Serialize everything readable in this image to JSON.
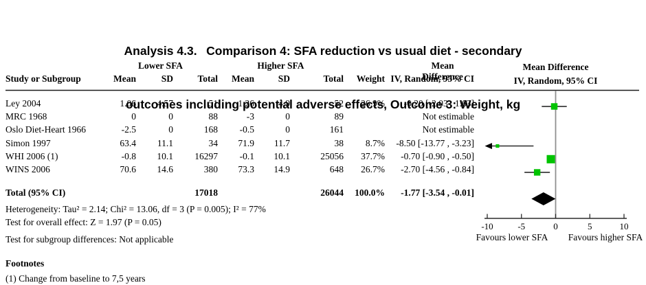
{
  "title": {
    "line1": "Analysis 4.3.  Comparison 4: SFA reduction vs usual diet - secondary",
    "line2": "outcomes including potential adverse effects, Outcome 3: Weight, kg"
  },
  "table": {
    "group_headers": {
      "lower": "Lower SFA",
      "higher": "Higher SFA",
      "mean_diff": "Mean Difference"
    },
    "col_headers": {
      "study": "Study or Subgroup",
      "mean1": "Mean",
      "sd1": "SD",
      "total1": "Total",
      "mean2": "Mean",
      "sd2": "SD",
      "total2": "Total",
      "weight": "Weight",
      "ci": "IV, Random, 95% CI"
    },
    "plot_header": {
      "line1": "Mean Difference",
      "line2": "IV, Random, 95% CI"
    },
    "rows": [
      {
        "study": "Ley 2004",
        "mean1": "1.06",
        "sd1": "4.57",
        "total1": "51",
        "mean2": "1.26",
        "sd2": "4.9",
        "total2": "52",
        "weight": "26.9%",
        "ci": "-0.20 [-2.03 , 1.63]"
      },
      {
        "study": "MRC 1968",
        "mean1": "0",
        "sd1": "0",
        "total1": "88",
        "mean2": "-3",
        "sd2": "0",
        "total2": "89",
        "weight": "",
        "ci": "Not estimable"
      },
      {
        "study": "Oslo Diet-Heart 1966",
        "mean1": "-2.5",
        "sd1": "0",
        "total1": "168",
        "mean2": "-0.5",
        "sd2": "0",
        "total2": "161",
        "weight": "",
        "ci": "Not estimable"
      },
      {
        "study": "Simon 1997",
        "mean1": "63.4",
        "sd1": "11.1",
        "total1": "34",
        "mean2": "71.9",
        "sd2": "11.7",
        "total2": "38",
        "weight": "8.7%",
        "ci": "-8.50 [-13.77 , -3.23]"
      },
      {
        "study": "WHI 2006 (1)",
        "mean1": "-0.8",
        "sd1": "10.1",
        "total1": "16297",
        "mean2": "-0.1",
        "sd2": "10.1",
        "total2": "25056",
        "weight": "37.7%",
        "ci": "-0.70 [-0.90 , -0.50]"
      },
      {
        "study": "WINS 2006",
        "mean1": "70.6",
        "sd1": "14.6",
        "total1": "380",
        "mean2": "73.3",
        "sd2": "14.9",
        "total2": "648",
        "weight": "26.7%",
        "ci": "-2.70 [-4.56 , -0.84]"
      }
    ],
    "total_row": {
      "label": "Total (95% CI)",
      "total1": "17018",
      "total2": "26044",
      "weight": "100.0%",
      "ci": "-1.77 [-3.54 , -0.01]"
    }
  },
  "stats": {
    "heterogeneity": "Heterogeneity: Tau² = 2.14; Chi² = 13.06, df = 3 (P = 0.005); I² = 77%",
    "overall_effect": "Test for overall effect: Z = 1.97 (P = 0.05)",
    "subgroup_differences": "Test for subgroup differences: Not applicable"
  },
  "footnotes": {
    "heading": "Footnotes",
    "item1": "(1) Change from baseline to 7,5 years"
  },
  "chart_data": {
    "type": "forest",
    "effect_measure": "Mean Difference, IV, Random, 95% CI",
    "xlim": [
      -10,
      10
    ],
    "ticks": [
      -10,
      -5,
      0,
      5,
      10
    ],
    "favours_left": "Favours lower SFA",
    "favours_right": "Favours higher SFA",
    "marker_color": "#00c300",
    "line_color": "#1a1a1a",
    "zero_line_color": "#909090",
    "studies": [
      {
        "name": "Ley 2004",
        "est": -0.2,
        "lo": -2.03,
        "hi": 1.63,
        "weight_pct": 26.9
      },
      {
        "name": "MRC 1968",
        "est": null,
        "lo": null,
        "hi": null,
        "weight_pct": null,
        "note": "Not estimable"
      },
      {
        "name": "Oslo Diet-Heart 1966",
        "est": null,
        "lo": null,
        "hi": null,
        "weight_pct": null,
        "note": "Not estimable"
      },
      {
        "name": "Simon 1997",
        "est": -8.5,
        "lo": -13.77,
        "hi": -3.23,
        "weight_pct": 8.7
      },
      {
        "name": "WHI 2006 (1)",
        "est": -0.7,
        "lo": -0.9,
        "hi": -0.5,
        "weight_pct": 37.7
      },
      {
        "name": "WINS 2006",
        "est": -2.7,
        "lo": -4.56,
        "hi": -0.84,
        "weight_pct": 26.7
      }
    ],
    "total": {
      "name": "Total (95% CI)",
      "est": -1.77,
      "lo": -3.54,
      "hi": -0.01,
      "weight_pct": 100.0
    }
  }
}
